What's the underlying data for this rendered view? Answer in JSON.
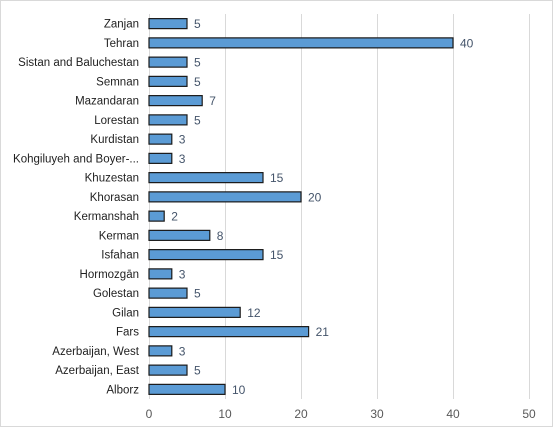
{
  "chart_data": {
    "type": "bar",
    "orientation": "horizontal",
    "title": "",
    "xlabel": "",
    "ylabel": "",
    "categories": [
      "Zanjan",
      "Tehran",
      "Sistan and Baluchestan",
      "Semnan",
      "Mazandaran",
      "Lorestan",
      "Kurdistan",
      "Kohgiluyeh and Boyer-...",
      "Khuzestan",
      "Khorasan",
      "Kermanshah",
      "Kerman",
      "Isfahan",
      "Hormozgān",
      "Golestan",
      "Gilan",
      "Fars",
      "Azerbaijan, West",
      "Azerbaijan, East",
      "Alborz"
    ],
    "values": [
      5,
      40,
      5,
      5,
      7,
      5,
      3,
      3,
      15,
      20,
      2,
      8,
      15,
      3,
      5,
      12,
      21,
      3,
      5,
      10
    ],
    "xlim": [
      0,
      50
    ],
    "xticks": [
      0,
      10,
      20,
      30,
      40,
      50
    ],
    "grid": true,
    "legend": "none",
    "colors": {
      "bar_fill": "#5b9bd5",
      "bar_stroke": "#1a1a1a",
      "grid": "#d9d9d9",
      "category_text": "#1f1f1f",
      "value_label": "#44546a",
      "tick_text": "#595959"
    }
  }
}
